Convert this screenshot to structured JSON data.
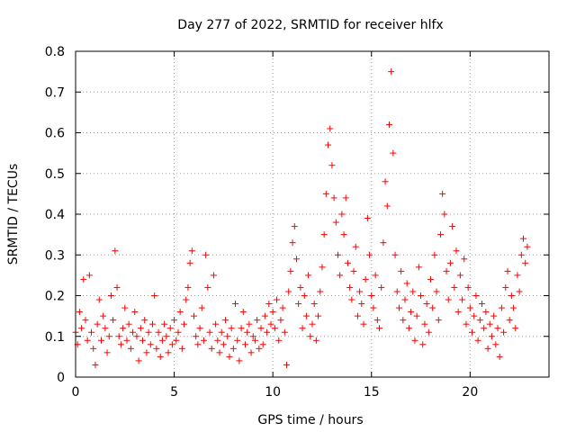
{
  "chart_data": {
    "type": "scatter",
    "title": "Day 277 of 2022, SRMTID for receiver hlfx",
    "xlabel": "GPS time / hours",
    "ylabel": "SRMTID / TECUs",
    "xlim": [
      0,
      24
    ],
    "ylim": [
      0,
      0.8
    ],
    "xticks": [
      "0",
      "5",
      "10",
      "15",
      "20"
    ],
    "xtick_values": [
      0,
      5,
      10,
      15,
      20
    ],
    "yticks": [
      "0",
      "0.1",
      "0.2",
      "0.3",
      "0.4",
      "0.5",
      "0.6",
      "0.7",
      "0.8"
    ],
    "ytick_values": [
      0,
      0.1,
      0.2,
      0.3,
      0.4,
      0.5,
      0.6,
      0.7,
      0.8
    ],
    "grid": true,
    "marker": "+",
    "color": "#ff0000",
    "series": [
      {
        "name": "SRMTID",
        "points": [
          [
            0.0,
            0.11
          ],
          [
            0.1,
            0.08
          ],
          [
            0.2,
            0.16
          ],
          [
            0.3,
            0.12
          ],
          [
            0.4,
            0.24
          ],
          [
            0.5,
            0.14
          ],
          [
            0.6,
            0.09
          ],
          [
            0.7,
            0.25
          ],
          [
            0.8,
            0.11
          ],
          [
            0.9,
            0.07
          ],
          [
            1.0,
            0.03
          ],
          [
            1.1,
            0.13
          ],
          [
            1.2,
            0.19
          ],
          [
            1.3,
            0.09
          ],
          [
            1.4,
            0.15
          ],
          [
            1.5,
            0.12
          ],
          [
            1.6,
            0.06
          ],
          [
            1.7,
            0.1
          ],
          [
            1.8,
            0.2
          ],
          [
            1.9,
            0.14
          ],
          [
            2.0,
            0.31
          ],
          [
            2.1,
            0.22
          ],
          [
            2.2,
            0.1
          ],
          [
            2.3,
            0.08
          ],
          [
            2.4,
            0.12
          ],
          [
            2.5,
            0.17
          ],
          [
            2.6,
            0.09
          ],
          [
            2.7,
            0.13
          ],
          [
            2.8,
            0.07
          ],
          [
            2.9,
            0.11
          ],
          [
            3.0,
            0.16
          ],
          [
            3.1,
            0.1
          ],
          [
            3.2,
            0.04
          ],
          [
            3.3,
            0.12
          ],
          [
            3.4,
            0.09
          ],
          [
            3.5,
            0.14
          ],
          [
            3.6,
            0.06
          ],
          [
            3.7,
            0.11
          ],
          [
            3.8,
            0.08
          ],
          [
            3.9,
            0.13
          ],
          [
            4.0,
            0.2
          ],
          [
            4.1,
            0.07
          ],
          [
            4.2,
            0.11
          ],
          [
            4.3,
            0.05
          ],
          [
            4.4,
            0.09
          ],
          [
            4.5,
            0.13
          ],
          [
            4.6,
            0.1
          ],
          [
            4.7,
            0.06
          ],
          [
            4.8,
            0.12
          ],
          [
            4.9,
            0.08
          ],
          [
            5.0,
            0.14
          ],
          [
            5.1,
            0.09
          ],
          [
            5.2,
            0.11
          ],
          [
            5.3,
            0.16
          ],
          [
            5.4,
            0.07
          ],
          [
            5.5,
            0.13
          ],
          [
            5.6,
            0.19
          ],
          [
            5.7,
            0.22
          ],
          [
            5.8,
            0.28
          ],
          [
            5.9,
            0.31
          ],
          [
            6.0,
            0.15
          ],
          [
            6.1,
            0.1
          ],
          [
            6.2,
            0.08
          ],
          [
            6.3,
            0.12
          ],
          [
            6.4,
            0.17
          ],
          [
            6.5,
            0.09
          ],
          [
            6.6,
            0.3
          ],
          [
            6.7,
            0.22
          ],
          [
            6.8,
            0.11
          ],
          [
            6.9,
            0.07
          ],
          [
            7.0,
            0.25
          ],
          [
            7.1,
            0.13
          ],
          [
            7.2,
            0.09
          ],
          [
            7.3,
            0.06
          ],
          [
            7.4,
            0.11
          ],
          [
            7.5,
            0.08
          ],
          [
            7.6,
            0.14
          ],
          [
            7.7,
            0.1
          ],
          [
            7.8,
            0.05
          ],
          [
            7.9,
            0.12
          ],
          [
            8.0,
            0.07
          ],
          [
            8.1,
            0.18
          ],
          [
            8.2,
            0.09
          ],
          [
            8.3,
            0.04
          ],
          [
            8.4,
            0.12
          ],
          [
            8.5,
            0.16
          ],
          [
            8.6,
            0.08
          ],
          [
            8.7,
            0.11
          ],
          [
            8.8,
            0.13
          ],
          [
            8.9,
            0.06
          ],
          [
            9.0,
            0.1
          ],
          [
            9.1,
            0.09
          ],
          [
            9.2,
            0.14
          ],
          [
            9.3,
            0.07
          ],
          [
            9.4,
            0.12
          ],
          [
            9.5,
            0.08
          ],
          [
            9.6,
            0.15
          ],
          [
            9.7,
            0.11
          ],
          [
            9.8,
            0.18
          ],
          [
            9.9,
            0.13
          ],
          [
            10.0,
            0.16
          ],
          [
            10.1,
            0.12
          ],
          [
            10.2,
            0.19
          ],
          [
            10.3,
            0.09
          ],
          [
            10.4,
            0.14
          ],
          [
            10.5,
            0.17
          ],
          [
            10.6,
            0.11
          ],
          [
            10.7,
            0.03
          ],
          [
            10.8,
            0.21
          ],
          [
            10.9,
            0.26
          ],
          [
            11.0,
            0.33
          ],
          [
            11.1,
            0.37
          ],
          [
            11.2,
            0.29
          ],
          [
            11.3,
            0.18
          ],
          [
            11.4,
            0.22
          ],
          [
            11.5,
            0.12
          ],
          [
            11.6,
            0.2
          ],
          [
            11.7,
            0.15
          ],
          [
            11.8,
            0.25
          ],
          [
            11.9,
            0.1
          ],
          [
            12.0,
            0.13
          ],
          [
            12.1,
            0.18
          ],
          [
            12.2,
            0.09
          ],
          [
            12.3,
            0.15
          ],
          [
            12.4,
            0.21
          ],
          [
            12.5,
            0.27
          ],
          [
            12.6,
            0.35
          ],
          [
            12.7,
            0.45
          ],
          [
            12.8,
            0.57
          ],
          [
            12.9,
            0.61
          ],
          [
            13.0,
            0.52
          ],
          [
            13.1,
            0.44
          ],
          [
            13.2,
            0.38
          ],
          [
            13.3,
            0.3
          ],
          [
            13.4,
            0.25
          ],
          [
            13.5,
            0.4
          ],
          [
            13.6,
            0.35
          ],
          [
            13.7,
            0.44
          ],
          [
            13.8,
            0.28
          ],
          [
            13.9,
            0.22
          ],
          [
            14.0,
            0.19
          ],
          [
            14.1,
            0.26
          ],
          [
            14.2,
            0.32
          ],
          [
            14.3,
            0.15
          ],
          [
            14.4,
            0.21
          ],
          [
            14.5,
            0.18
          ],
          [
            14.6,
            0.13
          ],
          [
            14.7,
            0.24
          ],
          [
            14.8,
            0.39
          ],
          [
            14.9,
            0.3
          ],
          [
            15.0,
            0.2
          ],
          [
            15.1,
            0.17
          ],
          [
            15.2,
            0.25
          ],
          [
            15.3,
            0.14
          ],
          [
            15.4,
            0.12
          ],
          [
            15.5,
            0.22
          ],
          [
            15.6,
            0.33
          ],
          [
            15.7,
            0.48
          ],
          [
            15.8,
            0.42
          ],
          [
            15.9,
            0.62
          ],
          [
            16.0,
            0.75
          ],
          [
            16.1,
            0.55
          ],
          [
            16.2,
            0.3
          ],
          [
            16.3,
            0.21
          ],
          [
            16.4,
            0.17
          ],
          [
            16.5,
            0.26
          ],
          [
            16.6,
            0.14
          ],
          [
            16.7,
            0.19
          ],
          [
            16.8,
            0.23
          ],
          [
            16.9,
            0.12
          ],
          [
            17.0,
            0.16
          ],
          [
            17.1,
            0.21
          ],
          [
            17.2,
            0.09
          ],
          [
            17.3,
            0.15
          ],
          [
            17.4,
            0.27
          ],
          [
            17.5,
            0.2
          ],
          [
            17.6,
            0.08
          ],
          [
            17.7,
            0.13
          ],
          [
            17.8,
            0.18
          ],
          [
            17.9,
            0.11
          ],
          [
            18.0,
            0.24
          ],
          [
            18.1,
            0.17
          ],
          [
            18.2,
            0.3
          ],
          [
            18.3,
            0.21
          ],
          [
            18.4,
            0.14
          ],
          [
            18.5,
            0.35
          ],
          [
            18.6,
            0.45
          ],
          [
            18.7,
            0.4
          ],
          [
            18.8,
            0.26
          ],
          [
            18.9,
            0.19
          ],
          [
            19.0,
            0.28
          ],
          [
            19.1,
            0.37
          ],
          [
            19.2,
            0.22
          ],
          [
            19.3,
            0.31
          ],
          [
            19.4,
            0.16
          ],
          [
            19.5,
            0.25
          ],
          [
            19.6,
            0.19
          ],
          [
            19.7,
            0.29
          ],
          [
            19.8,
            0.13
          ],
          [
            19.9,
            0.22
          ],
          [
            20.0,
            0.17
          ],
          [
            20.1,
            0.11
          ],
          [
            20.2,
            0.15
          ],
          [
            20.3,
            0.2
          ],
          [
            20.4,
            0.09
          ],
          [
            20.5,
            0.14
          ],
          [
            20.6,
            0.18
          ],
          [
            20.7,
            0.12
          ],
          [
            20.8,
            0.16
          ],
          [
            20.9,
            0.07
          ],
          [
            21.0,
            0.13
          ],
          [
            21.1,
            0.1
          ],
          [
            21.2,
            0.15
          ],
          [
            21.3,
            0.08
          ],
          [
            21.4,
            0.12
          ],
          [
            21.5,
            0.05
          ],
          [
            21.6,
            0.17
          ],
          [
            21.7,
            0.11
          ],
          [
            21.8,
            0.22
          ],
          [
            21.9,
            0.26
          ],
          [
            22.0,
            0.14
          ],
          [
            22.1,
            0.2
          ],
          [
            22.2,
            0.17
          ],
          [
            22.3,
            0.12
          ],
          [
            22.4,
            0.25
          ],
          [
            22.5,
            0.21
          ],
          [
            22.6,
            0.3
          ],
          [
            22.7,
            0.34
          ],
          [
            22.8,
            0.28
          ],
          [
            22.9,
            0.32
          ]
        ]
      }
    ]
  }
}
